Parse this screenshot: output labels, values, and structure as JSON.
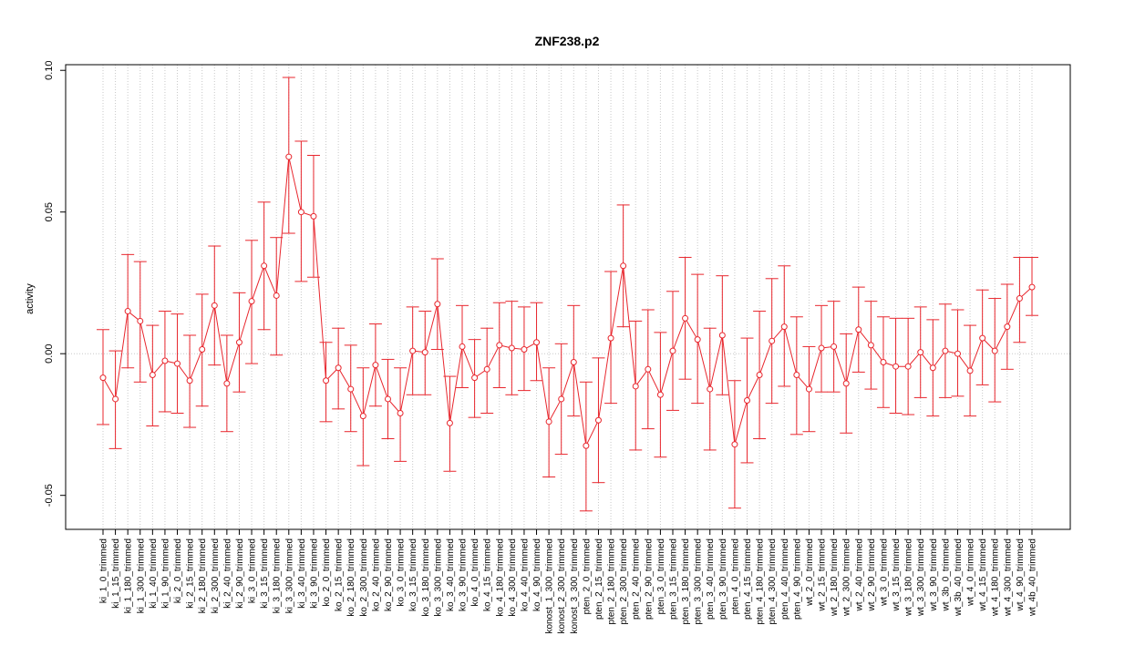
{
  "chart_data": {
    "type": "line",
    "title": "ZNF238.p2",
    "xlabel": "",
    "ylabel": "activity",
    "ylim": [
      -0.062,
      0.102
    ],
    "yticks": [
      "-0.05",
      "0.00",
      "0.05",
      "0.10"
    ],
    "ytick_values": [
      -0.05,
      0.0,
      0.05,
      0.1
    ],
    "grid": true,
    "series_color": "#e8262d",
    "grid_color": "#c8c8c8",
    "categories": [
      "ki_1_0_trimmed",
      "ki_1_15_trimmed",
      "ki_1_180_trimmed",
      "ki_1_300_trimmed",
      "ki_1_40_trimmed",
      "ki_1_90_trimmed",
      "ki_2_0_trimmed",
      "ki_2_15_trimmed",
      "ki_2_180_trimmed",
      "ki_2_300_trimmed",
      "ki_2_40_trimmed",
      "ki_2_90_trimmed",
      "ki_3_0_trimmed",
      "ki_3_15_trimmed",
      "ki_3_180_trimmed",
      "ki_3_300_trimmed",
      "ki_3_40_trimmed",
      "ki_3_90_trimmed",
      "ko_2_0_trimmed",
      "ko_2_15_trimmed",
      "ko_2_180_trimmed",
      "ko_2_300_trimmed",
      "ko_2_40_trimmed",
      "ko_2_90_trimmed",
      "ko_3_0_trimmed",
      "ko_3_15_trimmed",
      "ko_3_180_trimmed",
      "ko_3_300_trimmed",
      "ko_3_40_trimmed",
      "ko_3_90_trimmed",
      "ko_4_0_trimmed",
      "ko_4_15_trimmed",
      "ko_4_180_trimmed",
      "ko_4_300_trimmed",
      "ko_4_40_trimmed",
      "ko_4_90_trimmed",
      "konost_1_300_trimmed",
      "konost_2_300_trimmed",
      "konost_3_300_trimmed",
      "pten_2_0_trimmed",
      "pten_2_15_trimmed",
      "pten_2_180_trimmed",
      "pten_2_300_trimmed",
      "pten_2_40_trimmed",
      "pten_2_90_trimmed",
      "pten_3_0_trimmed",
      "pten_3_15_trimmed",
      "pten_3_180_trimmed",
      "pten_3_300_trimmed",
      "pten_3_40_trimmed",
      "pten_3_90_trimmed",
      "pten_4_0_trimmed",
      "pten_4_15_trimmed",
      "pten_4_180_trimmed",
      "pten_4_300_trimmed",
      "pten_4_40_trimmed",
      "pten_4_90_trimmed",
      "wt_2_0_trimmed",
      "wt_2_15_trimmed",
      "wt_2_180_trimmed",
      "wt_2_300_trimmed",
      "wt_2_40_trimmed",
      "wt_2_90_trimmed",
      "wt_3_0_trimmed",
      "wt_3_15_trimmed",
      "wt_3_180_trimmed",
      "wt_3_300_trimmed",
      "wt_3_90_trimmed",
      "wt_3b_0_trimmed",
      "wt_3b_40_trimmed",
      "wt_4_0_trimmed",
      "wt_4_15_trimmed",
      "wt_4_180_trimmed",
      "wt_4_300_trimmed",
      "wt_4_90_trimmed",
      "wt_4b_40_trimmed"
    ],
    "series": [
      {
        "values": [
          -0.0085,
          -0.016,
          0.015,
          0.0115,
          -0.0075,
          -0.0025,
          -0.0035,
          -0.0095,
          0.0015,
          0.017,
          -0.0105,
          0.004,
          0.0185,
          0.031,
          0.0205,
          0.0695,
          0.05,
          0.0485,
          -0.0095,
          -0.005,
          -0.0125,
          -0.022,
          -0.004,
          -0.016,
          -0.021,
          0.001,
          0.0005,
          0.0175,
          -0.0245,
          0.0025,
          -0.0085,
          -0.0055,
          0.003,
          0.002,
          0.0015,
          0.004,
          -0.024,
          -0.016,
          -0.003,
          -0.0325,
          -0.0235,
          0.0055,
          0.031,
          -0.0115,
          -0.0055,
          -0.0145,
          0.001,
          0.0125,
          0.005,
          -0.0125,
          0.0065,
          -0.032,
          -0.0165,
          -0.0075,
          0.0045,
          0.0095,
          -0.0075,
          -0.0125,
          0.002,
          0.0025,
          -0.0105,
          0.0085,
          0.003,
          -0.003,
          -0.0045,
          -0.0045,
          0.0005,
          -0.005,
          0.001,
          0.0,
          -0.006,
          0.0055,
          0.001,
          0.0095,
          0.0195,
          0.0235
        ],
        "upper": [
          0.0085,
          0.001,
          0.035,
          0.0325,
          0.01,
          0.015,
          0.014,
          0.0065,
          0.021,
          0.038,
          0.0065,
          0.0215,
          0.04,
          0.0535,
          0.041,
          0.0975,
          0.075,
          0.07,
          0.004,
          0.009,
          0.003,
          -0.005,
          0.0105,
          -0.002,
          -0.005,
          0.0165,
          0.015,
          0.0335,
          -0.008,
          0.017,
          0.005,
          0.009,
          0.018,
          0.0185,
          0.0165,
          0.018,
          -0.005,
          0.0035,
          0.017,
          -0.01,
          -0.0015,
          0.029,
          0.0525,
          0.0115,
          0.0155,
          0.0075,
          0.022,
          0.034,
          0.028,
          0.009,
          0.0275,
          -0.0095,
          0.0055,
          0.015,
          0.0265,
          0.031,
          0.013,
          0.0025,
          0.017,
          0.0185,
          0.007,
          0.0235,
          0.0185,
          0.013,
          0.0125,
          0.0125,
          0.0165,
          0.012,
          0.0175,
          0.0155,
          0.01,
          0.0225,
          0.0195,
          0.0245,
          0.034,
          0.034
        ],
        "lower": [
          -0.025,
          -0.0335,
          -0.005,
          -0.01,
          -0.0255,
          -0.0205,
          -0.021,
          -0.026,
          -0.0185,
          -0.004,
          -0.0275,
          -0.0135,
          -0.0035,
          0.0085,
          -0.0005,
          0.0425,
          0.0255,
          0.027,
          -0.024,
          -0.0195,
          -0.0275,
          -0.0395,
          -0.0185,
          -0.03,
          -0.038,
          -0.0145,
          -0.0145,
          0.0015,
          -0.0415,
          -0.012,
          -0.0225,
          -0.021,
          -0.012,
          -0.0145,
          -0.013,
          -0.0095,
          -0.0435,
          -0.0355,
          -0.022,
          -0.0555,
          -0.0455,
          -0.0175,
          0.0095,
          -0.034,
          -0.0265,
          -0.0365,
          -0.02,
          -0.009,
          -0.0175,
          -0.034,
          -0.0145,
          -0.0545,
          -0.0385,
          -0.03,
          -0.0175,
          -0.0115,
          -0.0285,
          -0.0275,
          -0.0135,
          -0.0135,
          -0.028,
          -0.0065,
          -0.0125,
          -0.019,
          -0.021,
          -0.0215,
          -0.0155,
          -0.022,
          -0.0155,
          -0.015,
          -0.022,
          -0.011,
          -0.017,
          -0.0055,
          0.004,
          0.0135
        ]
      }
    ]
  }
}
